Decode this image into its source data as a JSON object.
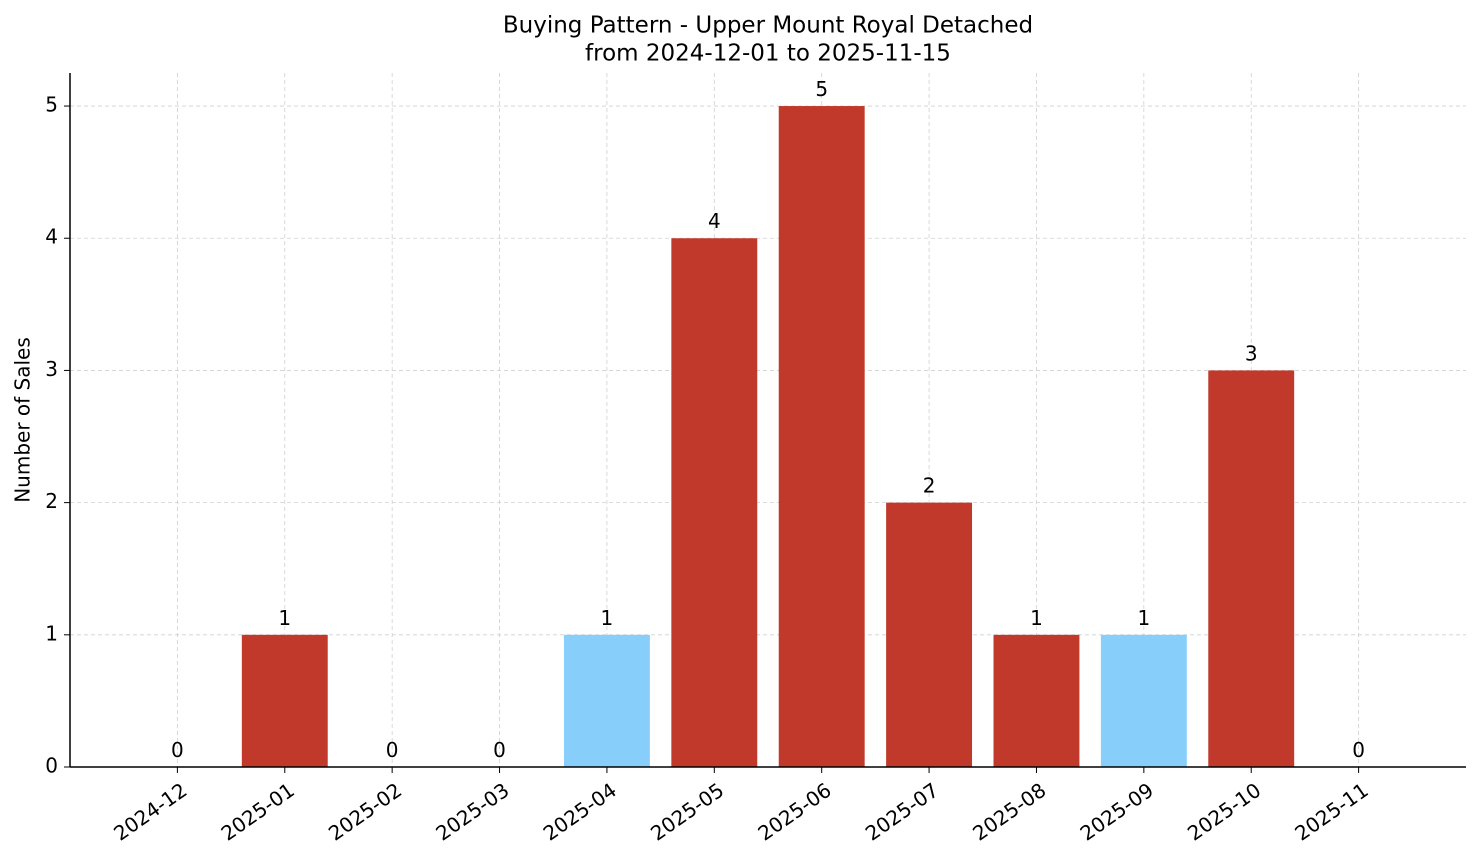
{
  "chart_data": {
    "type": "bar",
    "title": "Buying Pattern - Upper Mount Royal Detached",
    "subtitle": "from 2024-12-01 to 2025-11-15",
    "y_label": "Number of Sales",
    "categories": [
      "2024-12",
      "2025-01",
      "2025-02",
      "2025-03",
      "2025-04",
      "2025-05",
      "2025-06",
      "2025-07",
      "2025-08",
      "2025-09",
      "2025-10",
      "2025-11"
    ],
    "values": [
      0,
      1,
      0,
      0,
      1,
      4,
      5,
      2,
      1,
      1,
      3,
      0
    ],
    "colors": [
      "#c0392b",
      "#c0392b",
      "#c0392b",
      "#c0392b",
      "#87cefa",
      "#c0392b",
      "#c0392b",
      "#c0392b",
      "#c0392b",
      "#87cefa",
      "#c0392b",
      "#c0392b"
    ],
    "ylim": [
      0,
      5.25
    ],
    "yticks": [
      0,
      1,
      2,
      3,
      4,
      5
    ],
    "grid": true
  }
}
